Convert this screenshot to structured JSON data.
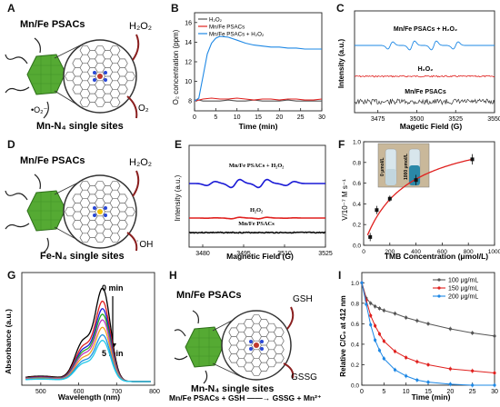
{
  "panels": {
    "A": {
      "letter": "A",
      "title": "Mn/Fe PSACs",
      "caption": "Mn-N₄ single sites",
      "h2o2": "H₂O₂",
      "o2": "O₂",
      "superoxide": "•O₂⁻"
    },
    "B": {
      "letter": "B",
      "ylabel": "O₂ concentration (ppm)",
      "xlabel": "Time (min)"
    },
    "C": {
      "letter": "C",
      "ylabel": "Intensity (a.u.)",
      "xlabel": "Magetic Field (G)",
      "trace_top": "Mn/Fe PSACs + H₂O₂",
      "trace_mid": "H₂O₂",
      "trace_bot": "Mn/Fe PSACs"
    },
    "D": {
      "letter": "D",
      "title": "Mn/Fe PSACs",
      "caption": "Fe-N₄ single sites",
      "h2o2": "H₂O₂",
      "oh": "˙OH"
    },
    "E": {
      "letter": "E",
      "ylabel": "Intensity (a.u.)",
      "xlabel": "Magnetic Field (G)",
      "trace_top": "Mn/Fe PSACs + H₂O₂",
      "trace_mid": "H₂O₂",
      "trace_bot": "Mn/Fe PSACs"
    },
    "F": {
      "letter": "F",
      "ylabel": "V/10⁻⁷ M s⁻¹",
      "xlabel": "TMB Concentration (μmol/L)",
      "vial1": "0 μmol/L",
      "vial2": "1000 μmol/L"
    },
    "G": {
      "letter": "G",
      "ylabel": "Absorbance (a.u.)",
      "xlabel": "Wavelength (nm)",
      "t0": "0 min",
      "t5": "5 min"
    },
    "H": {
      "letter": "H",
      "title": "Mn/Fe PSACs",
      "caption": "Mn-N₄ single sites",
      "gsh": "GSH",
      "gssg": "GSSG",
      "equation": "Mn/Fe PSACs + GSH ——→ GSSG + Mn²⁺"
    },
    "I": {
      "letter": "I",
      "ylabel": "Relative C/C₀ at 412 nm",
      "xlabel": "Time (min)"
    }
  },
  "chart_data": [
    {
      "panel": "B",
      "type": "line",
      "xlabel": "Time (min)",
      "ylabel": "O₂ concentration (ppm)",
      "xlim": [
        0,
        30
      ],
      "ylim": [
        7,
        17
      ],
      "xticks": [
        0,
        5,
        10,
        15,
        20,
        25,
        30
      ],
      "yticks": [
        8,
        10,
        12,
        14,
        16
      ],
      "legend_position": "top-left",
      "series": [
        {
          "name": "H₂O₂",
          "color": "#555555",
          "x": [
            0,
            1,
            2,
            4,
            6,
            8,
            10,
            12,
            14,
            16,
            18,
            20,
            22,
            24,
            26,
            28,
            30
          ],
          "y": [
            8.1,
            8.1,
            8.0,
            8.0,
            8.0,
            8.1,
            8.0,
            8.0,
            8.1,
            8.0,
            8.0,
            8.0,
            8.1,
            8.0,
            8.0,
            8.0,
            8.0
          ]
        },
        {
          "name": "Mn/Fe PSACs",
          "color": "#e0211f",
          "x": [
            0,
            1,
            2,
            4,
            6,
            8,
            10,
            12,
            14,
            16,
            18,
            20,
            22,
            24,
            26,
            28,
            30
          ],
          "y": [
            8.0,
            8.1,
            8.2,
            8.3,
            8.2,
            8.2,
            8.3,
            8.2,
            8.1,
            8.2,
            8.2,
            8.1,
            8.2,
            8.2,
            8.1,
            8.1,
            8.2
          ]
        },
        {
          "name": "Mn/Fe PSACs + H₂O₂",
          "color": "#1e88e5",
          "x": [
            0,
            1,
            2,
            3,
            4,
            5,
            6,
            8,
            10,
            12,
            14,
            16,
            18,
            20,
            22,
            24,
            26,
            28,
            30
          ],
          "y": [
            8.0,
            8.3,
            10.5,
            12.8,
            13.9,
            14.4,
            14.6,
            14.5,
            14.2,
            13.9,
            13.7,
            13.6,
            13.5,
            13.5,
            13.4,
            13.4,
            13.3,
            13.3,
            13.3
          ]
        }
      ]
    },
    {
      "panel": "C",
      "type": "line",
      "xlabel": "Magetic Field (G)",
      "ylabel": "Intensity (a.u.)",
      "xlim": [
        3460,
        3550
      ],
      "xticks": [
        3475,
        3500,
        3525,
        3550
      ],
      "series": [
        {
          "name": "Mn/Fe PSACs + H₂O₂",
          "color": "#1e88e5",
          "signal": "quartet",
          "peaks_G": [
            3483,
            3497,
            3511,
            3525
          ]
        },
        {
          "name": "H₂O₂",
          "color": "#e0211f",
          "signal": "flat"
        },
        {
          "name": "Mn/Fe PSACs",
          "color": "#333333",
          "signal": "noise"
        }
      ]
    },
    {
      "panel": "E",
      "type": "line",
      "xlabel": "Magnetic Field (G)",
      "ylabel": "Intensity (a.u.)",
      "xlim": [
        3475,
        3525
      ],
      "xticks": [
        3480,
        3495,
        3510,
        3525
      ],
      "series": [
        {
          "name": "Mn/Fe PSACs + H₂O₂",
          "color": "#1a1ad6",
          "signal": "quartet",
          "peaks_G": [
            3483,
            3492,
            3502,
            3512
          ]
        },
        {
          "name": "H₂O₂",
          "color": "#e0211f",
          "signal": "flat"
        },
        {
          "name": "Mn/Fe PSACs",
          "color": "#111111",
          "signal": "flat"
        }
      ]
    },
    {
      "panel": "F",
      "type": "scatter",
      "xlabel": "TMB Concentration (μmol/L)",
      "ylabel": "V/10⁻⁷ M s⁻¹",
      "xlim": [
        0,
        1000
      ],
      "ylim": [
        0,
        1.0
      ],
      "xticks": [
        0,
        200,
        400,
        600,
        800,
        1000
      ],
      "yticks": [
        0.0,
        0.2,
        0.4,
        0.6,
        0.8,
        1.0
      ],
      "points": {
        "x": [
          50,
          100,
          200,
          400,
          830
        ],
        "y": [
          0.08,
          0.34,
          0.45,
          0.63,
          0.83
        ],
        "err": [
          0.04,
          0.04,
          0.03,
          0.05,
          0.05
        ]
      },
      "fit": {
        "type": "michaelis-menten",
        "vmax": 1.15,
        "km": 320,
        "color": "#e0211f"
      }
    },
    {
      "panel": "G",
      "type": "line",
      "xlabel": "Wavelength (nm)",
      "ylabel": "Absorbance (a.u.)",
      "xlim": [
        450,
        800
      ],
      "xticks": [
        500,
        600,
        700,
        800
      ],
      "series": [
        {
          "name": "",
          "color": "#000000",
          "peak": 1.0
        },
        {
          "name": "",
          "color": "#e0211f",
          "peak": 0.86
        },
        {
          "name": "",
          "color": "#1a1ad6",
          "peak": 0.78
        },
        {
          "name": "",
          "color": "#22aa22",
          "peak": 0.72
        },
        {
          "name": "",
          "color": "#c03cc0",
          "peak": 0.66
        },
        {
          "name": "",
          "color": "#f0a020",
          "peak": 0.58
        },
        {
          "name": "",
          "color": "#2090e0",
          "peak": 0.5
        },
        {
          "name": "",
          "color": "#20c8e8",
          "peak": 0.44
        }
      ]
    },
    {
      "panel": "I",
      "type": "line",
      "xlabel": "Time (min)",
      "ylabel": "Relative C/C₀ at 412 nm",
      "xlim": [
        0,
        30
      ],
      "ylim": [
        0,
        1.1
      ],
      "xticks": [
        0,
        5,
        10,
        15,
        20,
        25,
        30
      ],
      "yticks": [
        0.0,
        0.2,
        0.4,
        0.6,
        0.8,
        1.0
      ],
      "legend_position": "top-right",
      "series": [
        {
          "name": "100 μg/mL",
          "color": "#555555",
          "x": [
            0,
            1,
            2,
            3,
            4,
            5,
            7.5,
            10,
            12.5,
            15,
            20,
            25,
            30
          ],
          "y": [
            1.0,
            0.85,
            0.8,
            0.77,
            0.75,
            0.73,
            0.7,
            0.66,
            0.63,
            0.6,
            0.55,
            0.51,
            0.48
          ]
        },
        {
          "name": "150 μg/mL",
          "color": "#e0211f",
          "x": [
            0,
            1,
            2,
            3,
            4,
            5,
            7.5,
            10,
            12.5,
            15,
            20,
            25,
            30
          ],
          "y": [
            1.0,
            0.83,
            0.68,
            0.58,
            0.5,
            0.43,
            0.33,
            0.27,
            0.23,
            0.2,
            0.16,
            0.14,
            0.12
          ]
        },
        {
          "name": "200 μg/mL",
          "color": "#1e88e5",
          "x": [
            0,
            1,
            2,
            3,
            4,
            5,
            7.5,
            10,
            12.5,
            15,
            20,
            25,
            30
          ],
          "y": [
            1.0,
            0.79,
            0.59,
            0.44,
            0.34,
            0.26,
            0.15,
            0.09,
            0.05,
            0.03,
            0.01,
            0.0,
            0.0
          ]
        }
      ]
    }
  ]
}
